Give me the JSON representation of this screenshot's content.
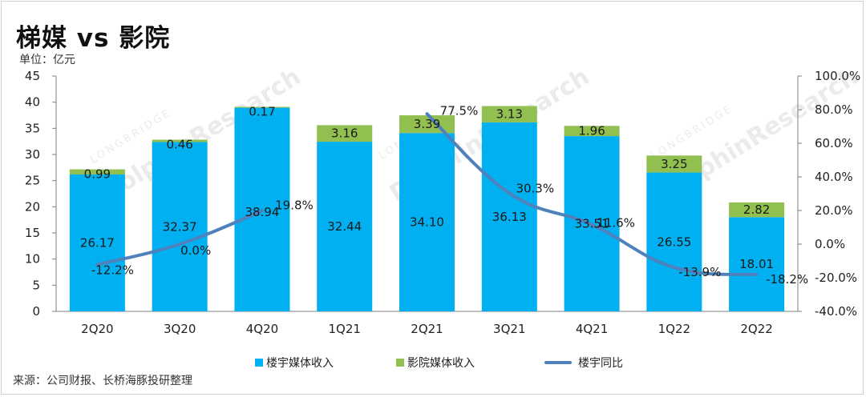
{
  "title": "梯媒 vs 影院",
  "unit": "单位：亿元",
  "source": "来源：公司财报、长桥海豚投研整理",
  "watermark": {
    "small": "LONGBRIDGE",
    "big": "DolphinResearch"
  },
  "colors": {
    "elevator": "#00b0f0",
    "cinema": "#92c050",
    "yoy": "#4f81bd",
    "axis": "#7f7f7f"
  },
  "chart_data": {
    "type": "bar",
    "stacked": true,
    "categories": [
      "2Q20",
      "3Q20",
      "4Q20",
      "1Q21",
      "2Q21",
      "3Q21",
      "4Q21",
      "1Q22",
      "2Q22"
    ],
    "series": [
      {
        "name": "楼宇媒体收入",
        "kind": "bar",
        "axis": "left",
        "values": [
          26.17,
          32.37,
          38.94,
          32.44,
          34.1,
          36.13,
          33.51,
          26.55,
          18.01
        ],
        "labels": [
          "26.17",
          "32.37",
          "38.94",
          "32.44",
          "34.10",
          "36.13",
          "33.51",
          "26.55",
          "18.01"
        ]
      },
      {
        "name": "影院媒体收入",
        "kind": "bar",
        "axis": "left",
        "values": [
          0.99,
          0.46,
          0.17,
          3.16,
          3.39,
          3.13,
          1.96,
          3.25,
          2.82
        ],
        "labels": [
          "0.99",
          "0.46",
          "0.17",
          "3.16",
          "3.39",
          "3.13",
          "1.96",
          "3.25",
          "2.82"
        ]
      },
      {
        "name": "楼宇同比",
        "kind": "line",
        "axis": "right",
        "values": [
          -12.2,
          0.0,
          19.8,
          null,
          77.5,
          30.3,
          11.6,
          -13.9,
          -18.2
        ],
        "labels": [
          "-12.2%",
          "0.0%",
          "19.8%",
          "",
          "77.5%",
          "30.3%",
          "11.6%",
          "-13.9%",
          "-18.2%"
        ]
      }
    ],
    "y_left": {
      "min": 0,
      "max": 45,
      "ticks": [
        "0",
        "5",
        "10",
        "15",
        "20",
        "25",
        "30",
        "35",
        "40",
        "45"
      ]
    },
    "y_right": {
      "min": -40,
      "max": 100,
      "ticks": [
        "-40.0%",
        "-20.0%",
        "0.0%",
        "20.0%",
        "40.0%",
        "60.0%",
        "80.0%",
        "100.0%"
      ]
    },
    "legend": {
      "position": "bottom"
    }
  }
}
